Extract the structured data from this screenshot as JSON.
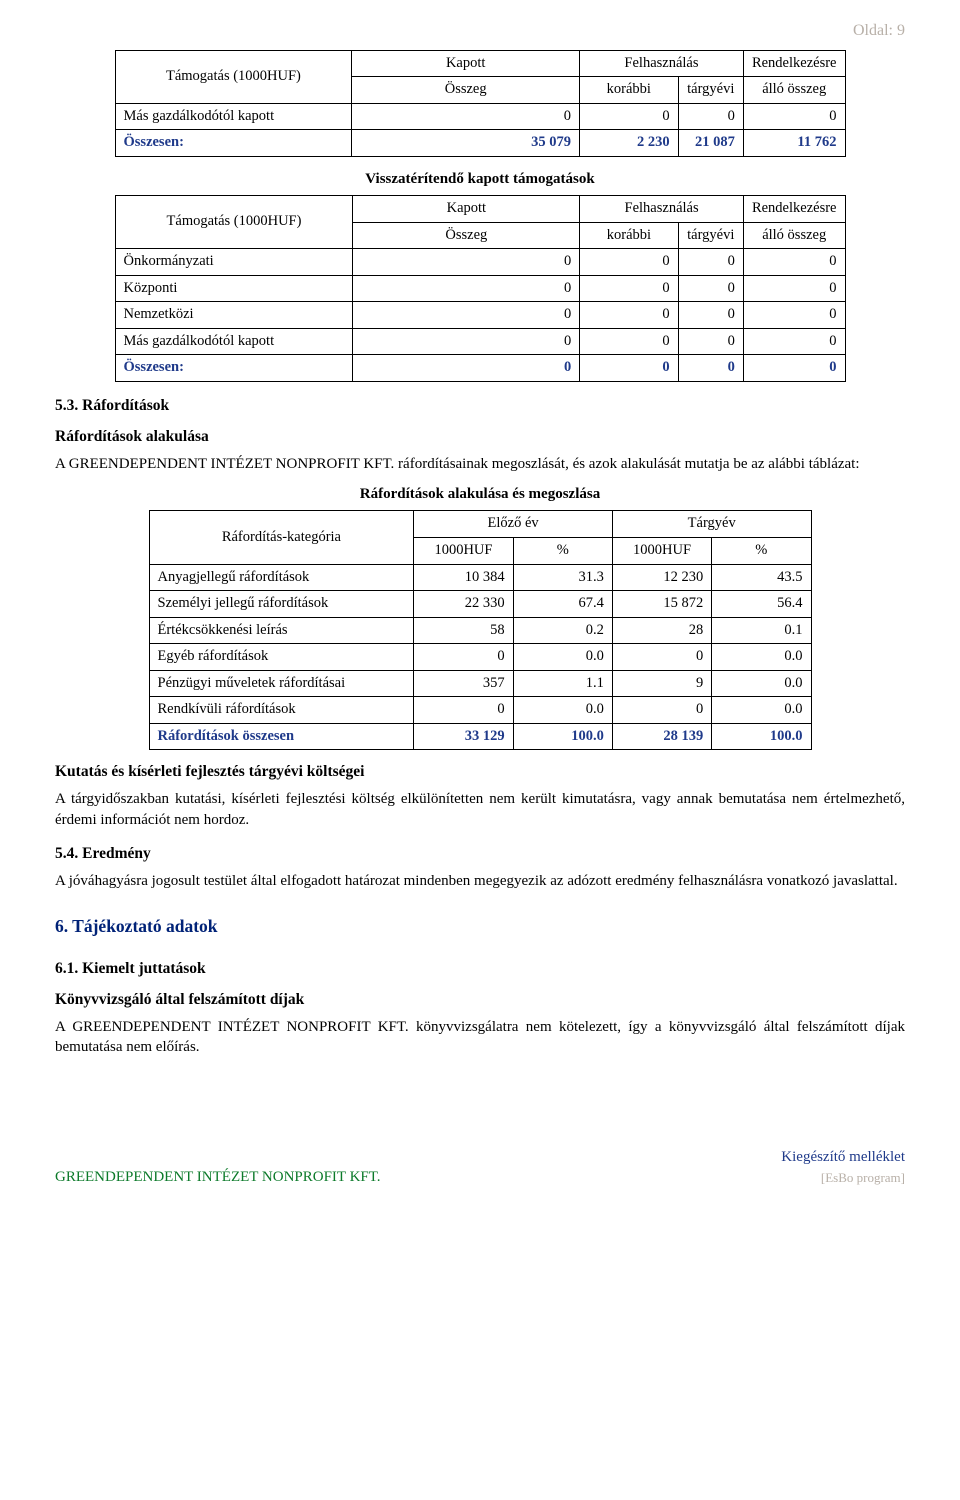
{
  "page_label": "Oldal:  9",
  "table1": {
    "head": {
      "c1": "Támogatás (1000HUF)",
      "c2a": "Kapott",
      "c2b": "Összeg",
      "c3": "Felhasználás",
      "c3a": "korábbi",
      "c3b": "tárgyévi",
      "c4a": "Rendelkezésre",
      "c4b": "álló összeg"
    },
    "rows": [
      {
        "label": "Más gazdálkodótól kapott",
        "v1": "0",
        "v2": "0",
        "v3": "0",
        "v4": "0"
      }
    ],
    "total": {
      "label": "Összesen:",
      "v1": "35 079",
      "v2": "2 230",
      "v3": "21 087",
      "v4": "11 762"
    }
  },
  "table2": {
    "title": "Visszatérítendő kapott támogatások",
    "head": {
      "c1": "Támogatás (1000HUF)",
      "c2a": "Kapott",
      "c2b": "Összeg",
      "c3": "Felhasználás",
      "c3a": "korábbi",
      "c3b": "tárgyévi",
      "c4a": "Rendelkezésre",
      "c4b": "álló összeg"
    },
    "rows": [
      {
        "label": "Önkormányzati",
        "v1": "0",
        "v2": "0",
        "v3": "0",
        "v4": "0"
      },
      {
        "label": "Központi",
        "v1": "0",
        "v2": "0",
        "v3": "0",
        "v4": "0"
      },
      {
        "label": "Nemzetközi",
        "v1": "0",
        "v2": "0",
        "v3": "0",
        "v4": "0"
      },
      {
        "label": "Más gazdálkodótól kapott",
        "v1": "0",
        "v2": "0",
        "v3": "0",
        "v4": "0"
      }
    ],
    "total": {
      "label": "Összesen:",
      "v1": "0",
      "v2": "0",
      "v3": "0",
      "v4": "0"
    }
  },
  "sec53": {
    "heading": "5.3. Ráfordítások",
    "sub": "Ráfordítások alakulása",
    "para": "A GREENDEPENDENT INTÉZET NONPROFIT KFT. ráfordításainak megoszlását, és azok alakulását mutatja be az alábbi táblázat:"
  },
  "table3": {
    "title": "Ráfordítások alakulása és megoszlása",
    "head": {
      "cat": "Ráfordítás-kategória",
      "prev": "Előző év",
      "curr": "Tárgyév",
      "huf": "1000HUF",
      "pct": "%"
    },
    "rows": [
      {
        "label": "Anyagjellegű ráfordítások",
        "a": "10 384",
        "b": "31.3",
        "c": "12 230",
        "d": "43.5"
      },
      {
        "label": "Személyi jellegű ráfordítások",
        "a": "22 330",
        "b": "67.4",
        "c": "15 872",
        "d": "56.4"
      },
      {
        "label": "Értékcsökkenési leírás",
        "a": "58",
        "b": "0.2",
        "c": "28",
        "d": "0.1"
      },
      {
        "label": "Egyéb ráfordítások",
        "a": "0",
        "b": "0.0",
        "c": "0",
        "d": "0.0"
      },
      {
        "label": "Pénzügyi műveletek ráfordításai",
        "a": "357",
        "b": "1.1",
        "c": "9",
        "d": "0.0"
      },
      {
        "label": "Rendkívüli ráfordítások",
        "a": "0",
        "b": "0.0",
        "c": "0",
        "d": "0.0"
      }
    ],
    "total": {
      "label": "Ráfordítások összesen",
      "a": "33 129",
      "b": "100.0",
      "c": "28 139",
      "d": "100.0"
    }
  },
  "kutatas": {
    "heading": "Kutatás és kísérleti fejlesztés tárgyévi költségei",
    "para": "A tárgyidőszakban kutatási, kísérleti fejlesztési költség elkülönítetten nem került kimutatásra, vagy annak bemutatása nem értelmezhető, érdemi információt nem hordoz."
  },
  "sec54": {
    "heading": "5.4. Eredmény",
    "para": "A jóváhagyásra jogosult testület által elfogadott határozat mindenben megegyezik az adózott eredmény felhasználásra vonatkozó javaslattal."
  },
  "sec6": {
    "heading": "6. Tájékoztató adatok"
  },
  "sec61": {
    "heading": "6.1. Kiemelt juttatások",
    "sub": "Könyvvizsgáló által felszámított díjak",
    "para": "A GREENDEPENDENT INTÉZET NONPROFIT KFT. könyvvizsgálatra nem kötelezett, így a könyvvizsgáló által felszámított díjak bemutatása nem előírás."
  },
  "footer": {
    "left": "GREENDEPENDENT INTÉZET NONPROFIT KFT.",
    "right": "Kiegészítő melléklet",
    "note": "[EsBo program]"
  }
}
